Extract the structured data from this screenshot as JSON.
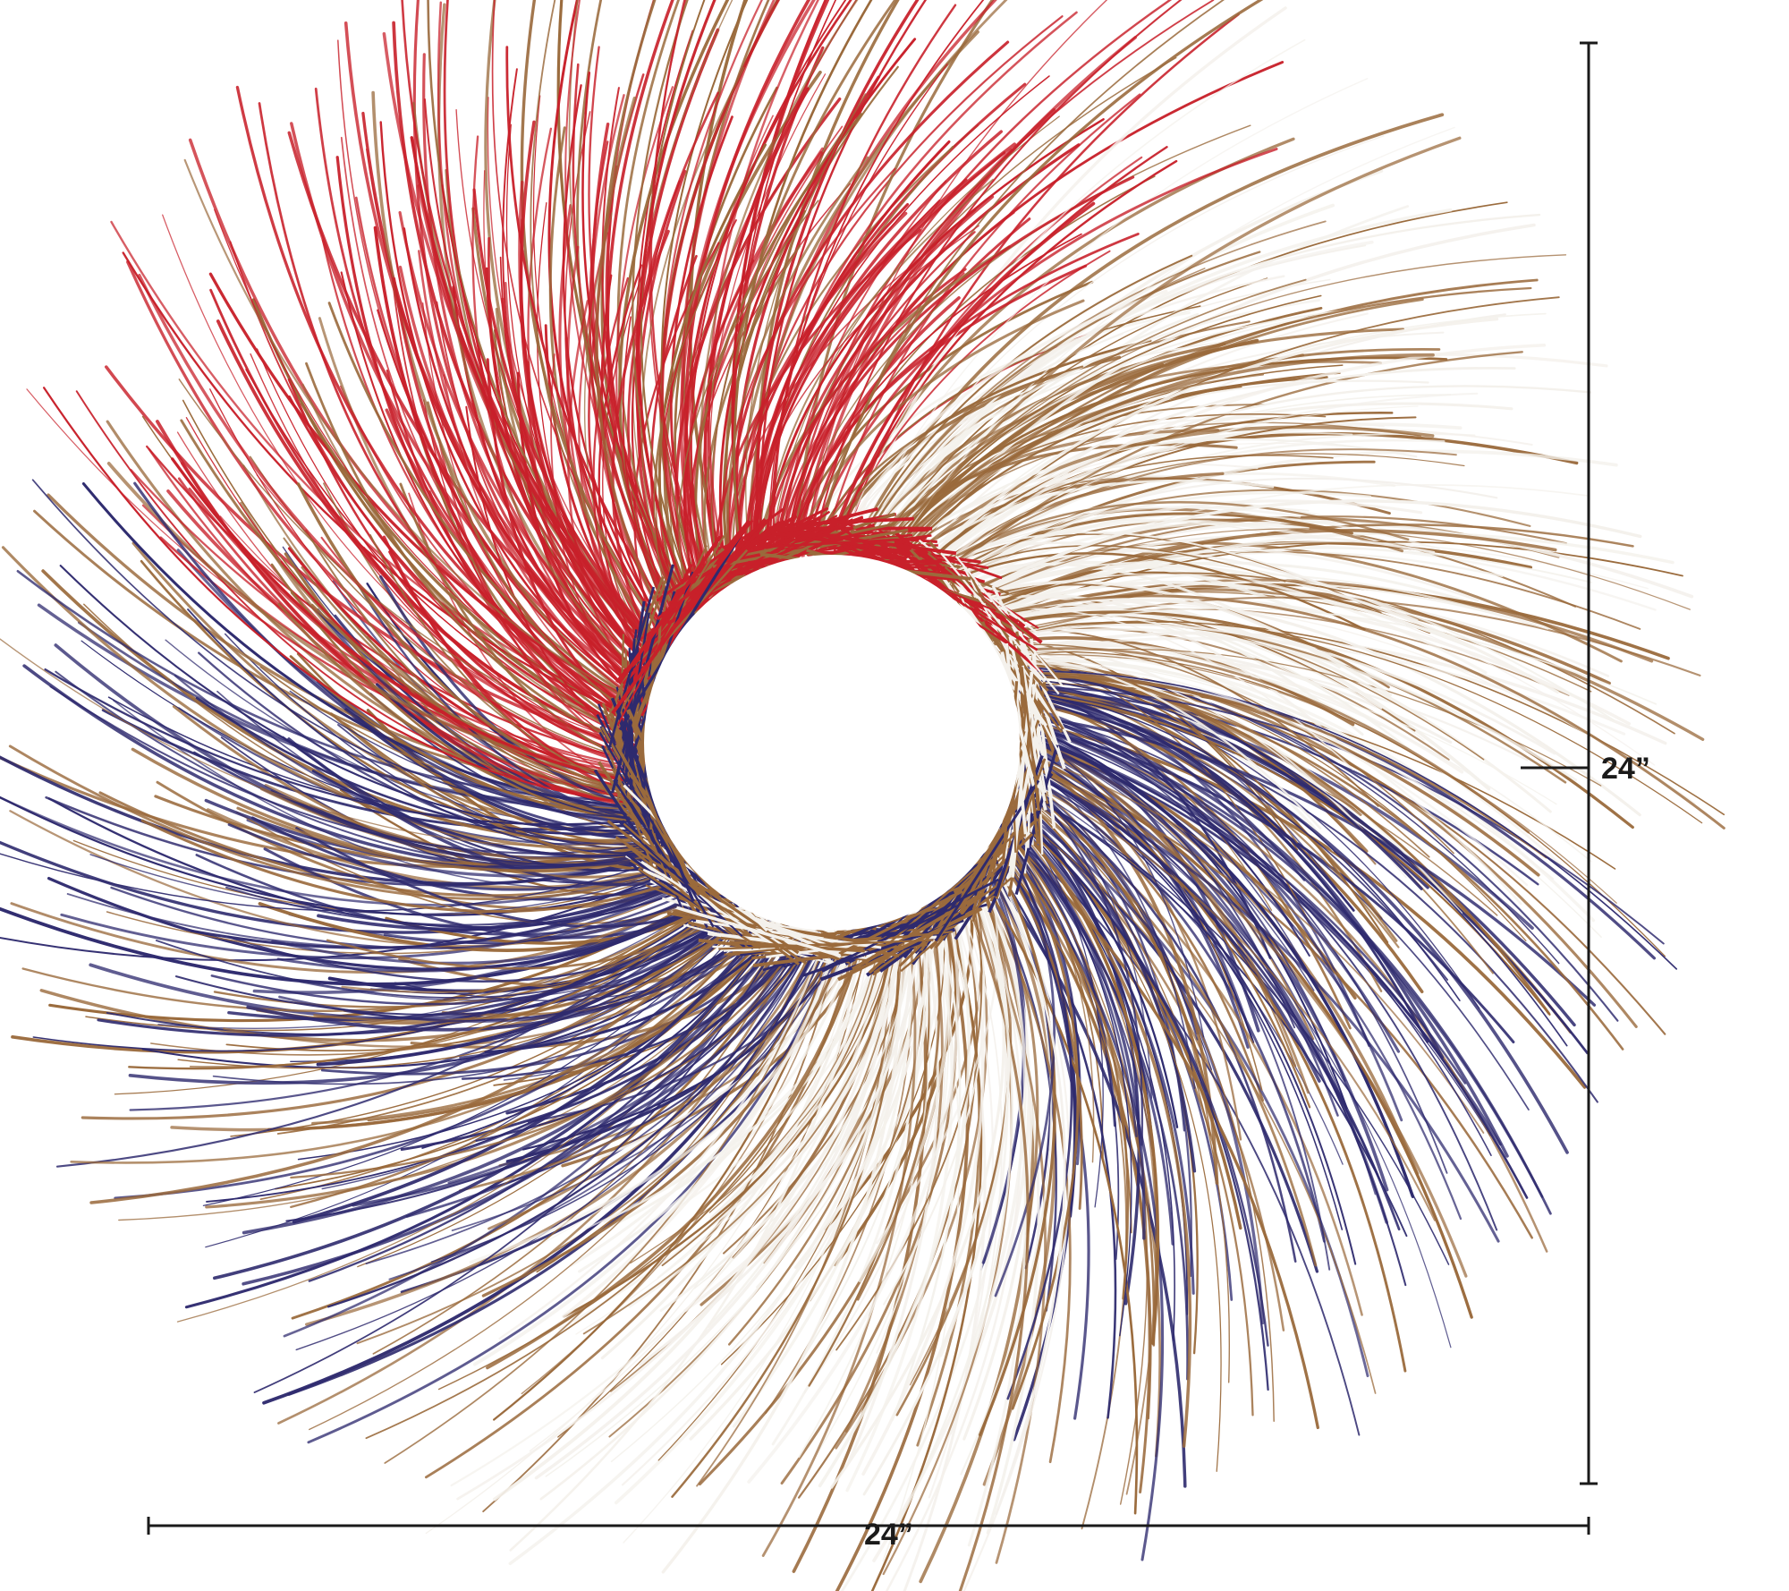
{
  "product": {
    "name": "twig-wreath",
    "colors": {
      "red": "#c8202a",
      "natural": "#9a6a3c",
      "white": "#f4f1ec",
      "navy": "#2e2a6e",
      "dimension_line": "#1a1a1a"
    }
  },
  "dimensions": {
    "height_label": "24”",
    "width_label": "24”"
  }
}
